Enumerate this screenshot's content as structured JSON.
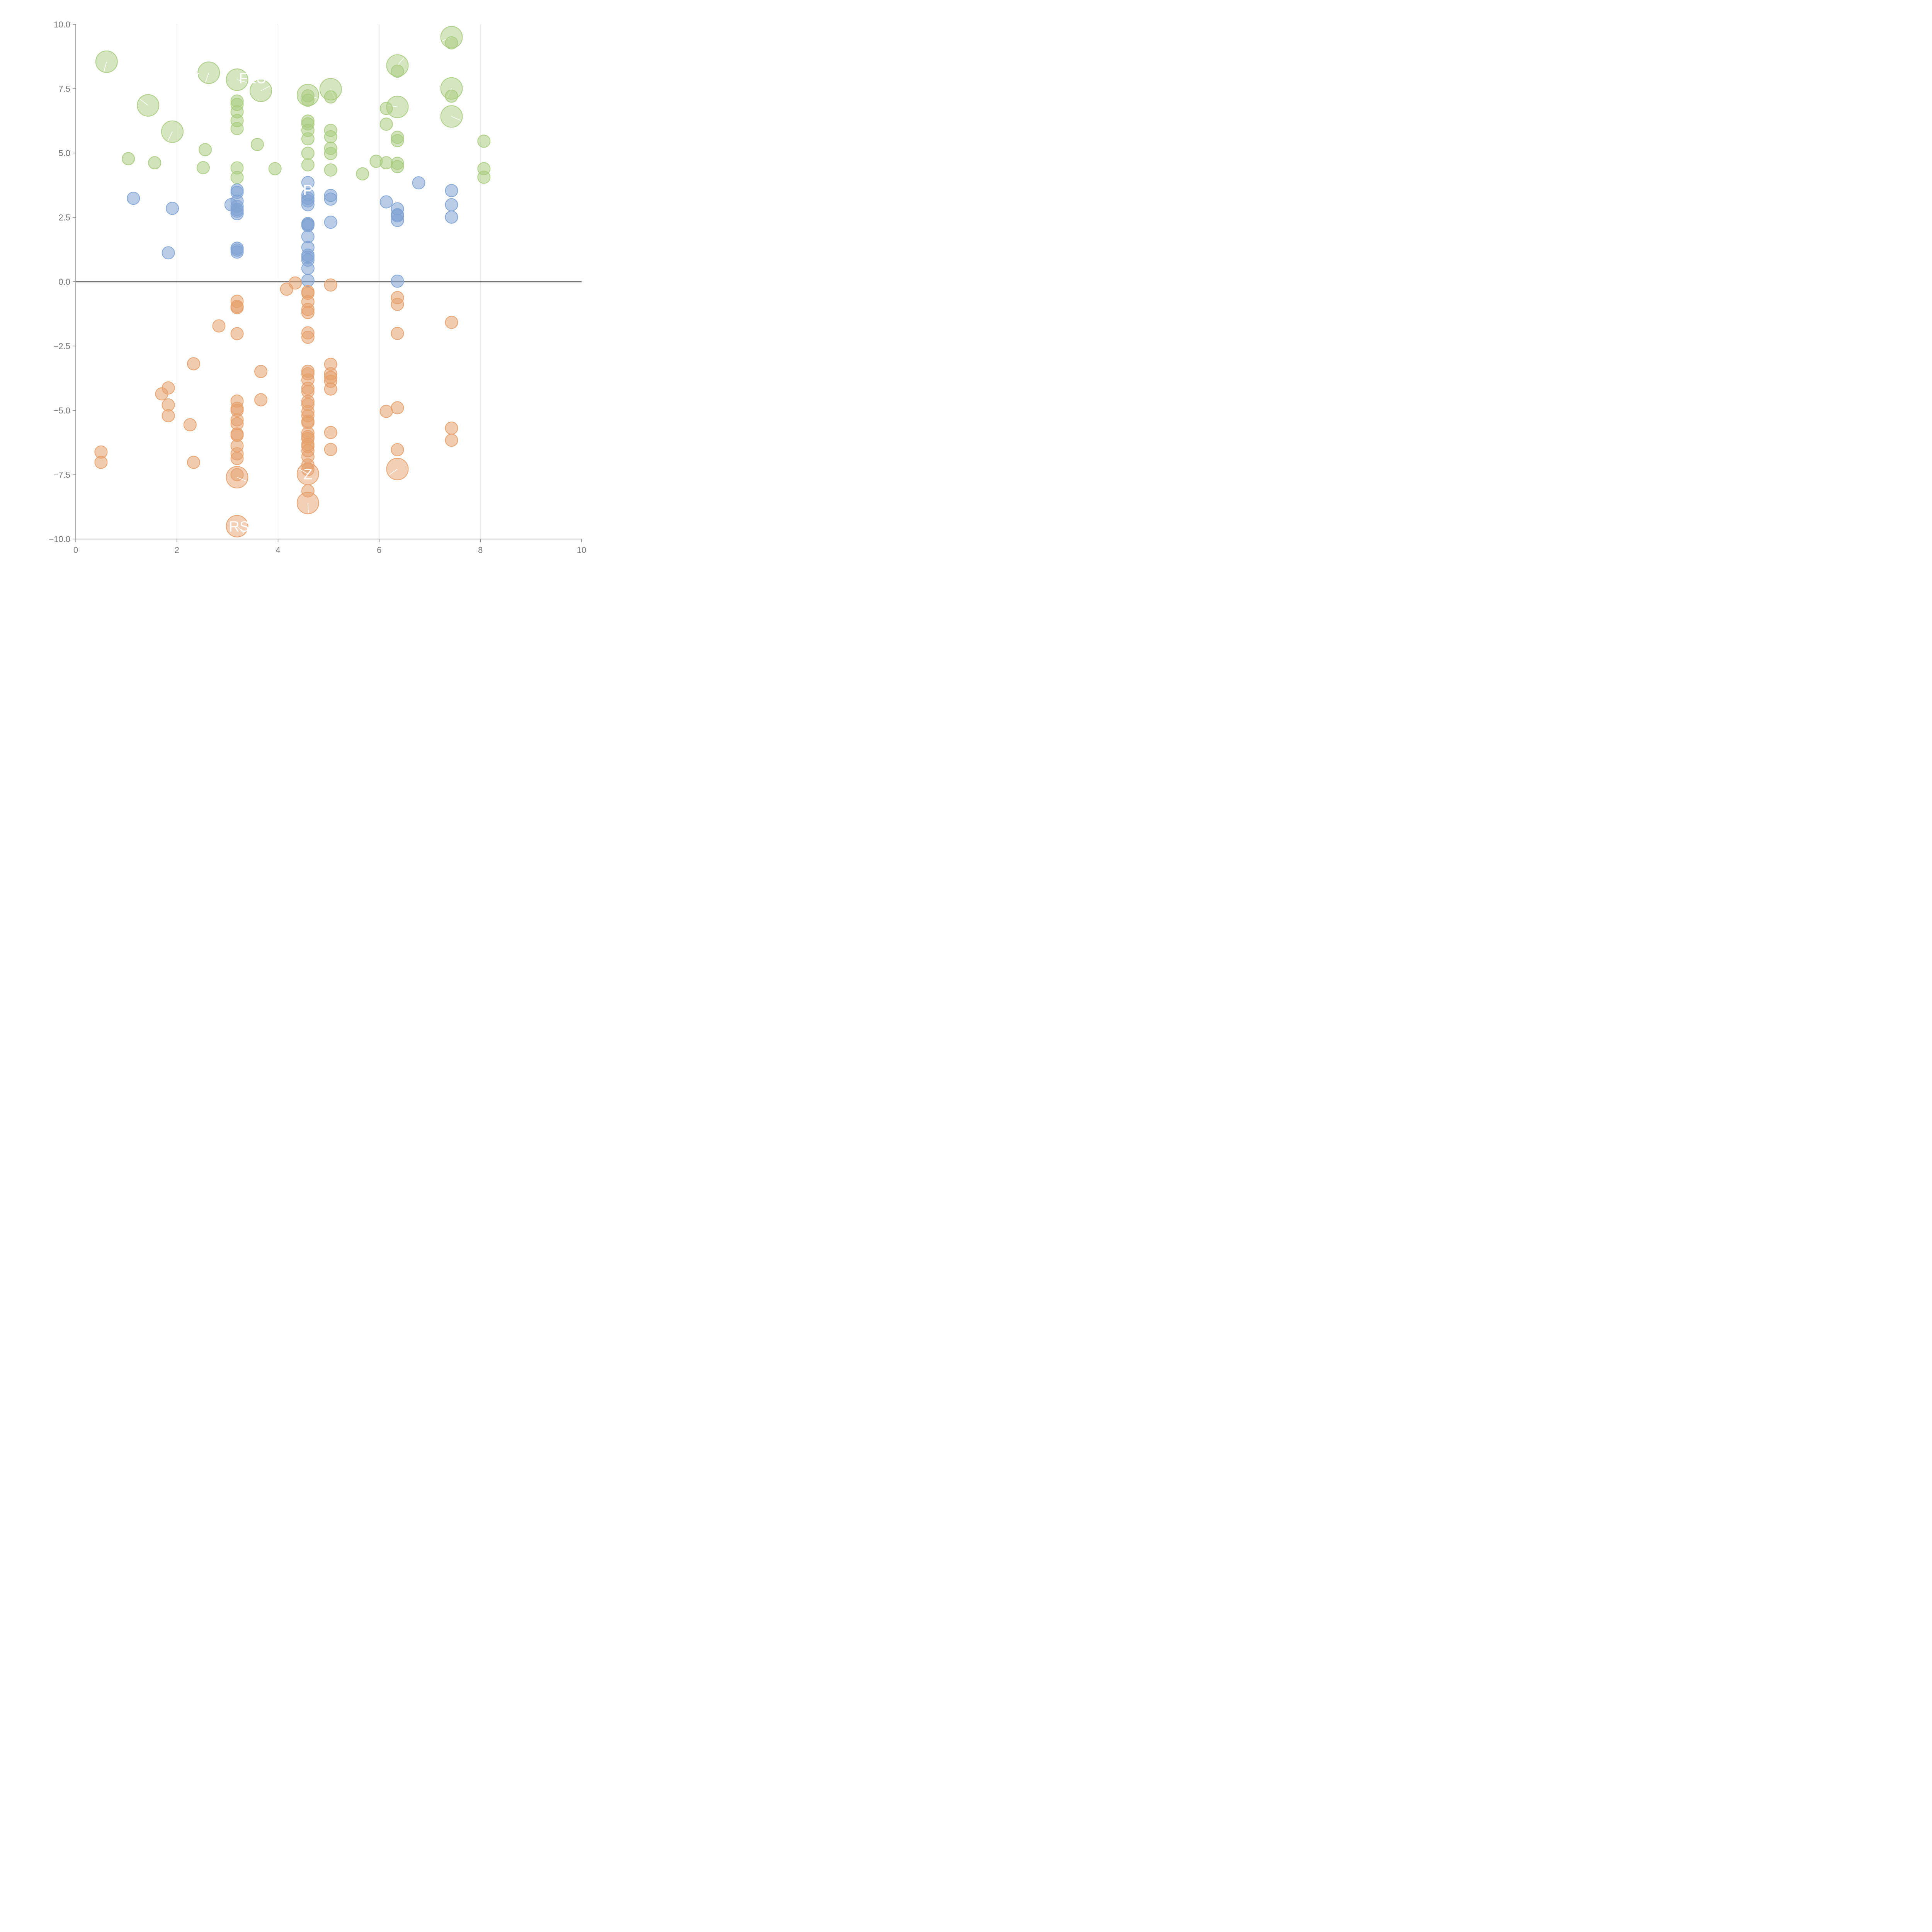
{
  "chart_data": {
    "type": "scatter",
    "title": "",
    "xlabel": "",
    "ylabel": "",
    "xlim": [
      0,
      10
    ],
    "ylim": [
      -10,
      10
    ],
    "x_ticks": [
      "0",
      "2",
      "4",
      "6",
      "8",
      "10"
    ],
    "y_ticks": [
      "10.0",
      "7.5",
      "5.0",
      "2.5",
      "0.0",
      "−2.5",
      "−5.0",
      "−7.5",
      "−10.0"
    ],
    "vertical_grid": true,
    "horizontal_grid": false,
    "zero_line": true,
    "legend": "none",
    "colors": {
      "green": "#a9cc7f",
      "blue": "#7fa3d4",
      "orange": "#e6a06b"
    },
    "series": [
      {
        "color": "green",
        "points": [
          [
            0.61,
            8.55,
            22
          ],
          [
            1.43,
            6.85,
            22
          ],
          [
            1.91,
            5.83,
            22
          ],
          [
            2.63,
            8.12,
            22
          ],
          [
            3.19,
            7.85,
            22
          ],
          [
            3.66,
            7.42,
            22
          ],
          [
            4.59,
            7.25,
            22
          ],
          [
            5.04,
            7.48,
            22
          ],
          [
            6.36,
            8.4,
            22
          ],
          [
            6.36,
            6.79,
            22
          ],
          [
            7.43,
            9.5,
            22
          ],
          [
            7.43,
            7.51,
            22
          ],
          [
            7.43,
            6.42,
            22
          ],
          [
            1.04,
            4.78,
            11
          ],
          [
            1.56,
            4.62,
            11
          ],
          [
            2.52,
            4.43,
            11
          ],
          [
            2.56,
            5.13,
            11
          ],
          [
            3.59,
            5.33,
            11
          ],
          [
            3.94,
            4.39,
            11
          ],
          [
            3.19,
            7.02,
            11
          ],
          [
            3.19,
            6.89,
            11
          ],
          [
            3.19,
            6.6,
            11
          ],
          [
            3.19,
            6.26,
            11
          ],
          [
            3.19,
            5.95,
            11
          ],
          [
            3.19,
            4.42,
            11
          ],
          [
            3.19,
            4.05,
            11
          ],
          [
            4.59,
            7.22,
            11
          ],
          [
            4.59,
            7.05,
            11
          ],
          [
            4.59,
            6.24,
            11
          ],
          [
            4.59,
            6.13,
            11
          ],
          [
            4.59,
            5.88,
            11
          ],
          [
            4.59,
            5.55,
            11
          ],
          [
            4.59,
            4.99,
            11
          ],
          [
            4.59,
            4.54,
            11
          ],
          [
            5.04,
            7.18,
            11
          ],
          [
            5.04,
            5.88,
            11
          ],
          [
            5.04,
            5.63,
            11
          ],
          [
            5.04,
            5.18,
            11
          ],
          [
            5.04,
            4.98,
            11
          ],
          [
            5.04,
            4.34,
            11
          ],
          [
            5.67,
            4.19,
            11
          ],
          [
            5.94,
            4.68,
            11
          ],
          [
            6.14,
            6.73,
            11
          ],
          [
            6.14,
            6.12,
            11
          ],
          [
            6.14,
            4.62,
            11
          ],
          [
            6.36,
            8.18,
            11
          ],
          [
            6.36,
            5.61,
            11
          ],
          [
            6.36,
            5.48,
            11
          ],
          [
            6.36,
            4.6,
            11
          ],
          [
            6.36,
            4.47,
            11
          ],
          [
            7.43,
            9.28,
            11
          ],
          [
            7.43,
            7.21,
            11
          ],
          [
            8.07,
            5.46,
            11
          ],
          [
            8.07,
            4.39,
            11
          ],
          [
            8.07,
            4.06,
            11
          ]
        ]
      },
      {
        "color": "blue",
        "points": [
          [
            1.14,
            3.24,
            11
          ],
          [
            1.83,
            1.12,
            11
          ],
          [
            1.91,
            2.85,
            11
          ],
          [
            3.07,
            2.99,
            11
          ],
          [
            3.19,
            3.56,
            11
          ],
          [
            3.19,
            3.47,
            11
          ],
          [
            3.19,
            3.13,
            11
          ],
          [
            3.19,
            2.93,
            11
          ],
          [
            3.19,
            2.81,
            11
          ],
          [
            3.19,
            2.74,
            11
          ],
          [
            3.19,
            2.64,
            11
          ],
          [
            3.19,
            1.3,
            11
          ],
          [
            3.19,
            1.23,
            11
          ],
          [
            3.19,
            1.15,
            11
          ],
          [
            4.59,
            3.85,
            11
          ],
          [
            4.59,
            3.38,
            11
          ],
          [
            4.59,
            3.24,
            11
          ],
          [
            4.59,
            3.14,
            11
          ],
          [
            4.59,
            2.99,
            11
          ],
          [
            4.59,
            2.26,
            11
          ],
          [
            4.59,
            2.22,
            11
          ],
          [
            4.59,
            2.18,
            11
          ],
          [
            4.59,
            1.75,
            11
          ],
          [
            4.59,
            1.33,
            11
          ],
          [
            4.59,
            1.03,
            11
          ],
          [
            4.59,
            0.95,
            11
          ],
          [
            4.59,
            0.84,
            11
          ],
          [
            4.59,
            0.52,
            11
          ],
          [
            4.59,
            0.05,
            11
          ],
          [
            5.04,
            3.35,
            11
          ],
          [
            5.04,
            3.21,
            11
          ],
          [
            5.04,
            2.31,
            11
          ],
          [
            6.14,
            3.1,
            11
          ],
          [
            6.36,
            2.83,
            11
          ],
          [
            6.36,
            2.6,
            11
          ],
          [
            6.36,
            2.56,
            11
          ],
          [
            6.36,
            2.38,
            11
          ],
          [
            6.36,
            0.02,
            11
          ],
          [
            6.78,
            3.84,
            11
          ],
          [
            7.43,
            3.54,
            11
          ],
          [
            7.43,
            2.99,
            11
          ],
          [
            7.43,
            2.51,
            11
          ]
        ]
      },
      {
        "color": "orange",
        "points": [
          [
            0.5,
            -6.62,
            11
          ],
          [
            0.5,
            -7.02,
            11
          ],
          [
            1.7,
            -4.36,
            11
          ],
          [
            1.83,
            -4.13,
            11
          ],
          [
            1.83,
            -4.79,
            11
          ],
          [
            1.83,
            -5.21,
            11
          ],
          [
            2.26,
            -5.56,
            11
          ],
          [
            2.33,
            -3.19,
            11
          ],
          [
            2.33,
            -7.02,
            11
          ],
          [
            2.83,
            -1.72,
            11
          ],
          [
            3.19,
            -0.76,
            11
          ],
          [
            3.19,
            -0.96,
            11
          ],
          [
            3.19,
            -1.01,
            11
          ],
          [
            3.19,
            -2.02,
            11
          ],
          [
            3.19,
            -4.64,
            11
          ],
          [
            3.19,
            -4.92,
            11
          ],
          [
            3.19,
            -5.0,
            11
          ],
          [
            3.19,
            -5.37,
            11
          ],
          [
            3.19,
            -5.52,
            11
          ],
          [
            3.19,
            -5.92,
            11
          ],
          [
            3.19,
            -5.97,
            11
          ],
          [
            3.19,
            -6.38,
            11
          ],
          [
            3.19,
            -6.69,
            11
          ],
          [
            3.19,
            -6.87,
            11
          ],
          [
            3.19,
            -7.5,
            11
          ],
          [
            3.66,
            -3.49,
            11
          ],
          [
            3.66,
            -4.59,
            11
          ],
          [
            4.17,
            -0.29,
            11
          ],
          [
            4.34,
            -0.05,
            11
          ],
          [
            4.59,
            -0.39,
            11
          ],
          [
            4.59,
            -0.45,
            11
          ],
          [
            4.59,
            -0.78,
            11
          ],
          [
            4.59,
            -1.08,
            11
          ],
          [
            4.59,
            -1.2,
            11
          ],
          [
            4.59,
            -1.99,
            11
          ],
          [
            4.59,
            -2.16,
            11
          ],
          [
            4.59,
            -3.48,
            11
          ],
          [
            4.59,
            -3.58,
            11
          ],
          [
            4.59,
            -3.82,
            11
          ],
          [
            4.59,
            -4.14,
            11
          ],
          [
            4.59,
            -4.27,
            11
          ],
          [
            4.59,
            -4.65,
            11
          ],
          [
            4.59,
            -4.77,
            11
          ],
          [
            4.59,
            -5.05,
            11
          ],
          [
            4.59,
            -5.21,
            11
          ],
          [
            4.59,
            -5.42,
            11
          ],
          [
            4.59,
            -5.48,
            11
          ],
          [
            4.59,
            -5.88,
            11
          ],
          [
            4.59,
            -6.02,
            11
          ],
          [
            4.59,
            -6.1,
            11
          ],
          [
            4.59,
            -6.32,
            11
          ],
          [
            4.59,
            -6.41,
            11
          ],
          [
            4.59,
            -6.57,
            11
          ],
          [
            4.59,
            -6.8,
            11
          ],
          [
            4.59,
            -7.12,
            11
          ],
          [
            4.59,
            -7.3,
            11
          ],
          [
            4.59,
            -8.13,
            11
          ],
          [
            5.04,
            -0.13,
            11
          ],
          [
            5.04,
            -3.21,
            11
          ],
          [
            5.04,
            -3.58,
            11
          ],
          [
            5.04,
            -3.72,
            11
          ],
          [
            5.04,
            -3.87,
            11
          ],
          [
            5.04,
            -4.17,
            11
          ],
          [
            5.04,
            -5.86,
            11
          ],
          [
            5.04,
            -6.52,
            11
          ],
          [
            6.14,
            -5.04,
            11
          ],
          [
            6.36,
            -0.62,
            11
          ],
          [
            6.36,
            -0.88,
            11
          ],
          [
            6.36,
            -2.01,
            11
          ],
          [
            6.36,
            -4.9,
            11
          ],
          [
            6.36,
            -6.53,
            11
          ],
          [
            7.43,
            -1.58,
            11
          ],
          [
            7.43,
            -5.69,
            11
          ],
          [
            7.43,
            -6.16,
            11
          ],
          [
            3.19,
            -7.6,
            22
          ],
          [
            4.59,
            -7.47,
            22
          ],
          [
            4.59,
            -8.6,
            22
          ],
          [
            6.36,
            -7.28,
            22
          ],
          [
            3.19,
            -9.5,
            22
          ]
        ]
      }
    ],
    "labels": [
      {
        "text": "K",
        "x": 2.36,
        "y": 7.92
      },
      {
        "text": "FLU",
        "x": 3.5,
        "y": 7.92
      },
      {
        "text": "P",
        "x": 4.59,
        "y": 3.57
      },
      {
        "text": "Z",
        "x": 4.59,
        "y": -7.47
      },
      {
        "text": "RS",
        "x": 3.23,
        "y": -9.5
      }
    ]
  }
}
